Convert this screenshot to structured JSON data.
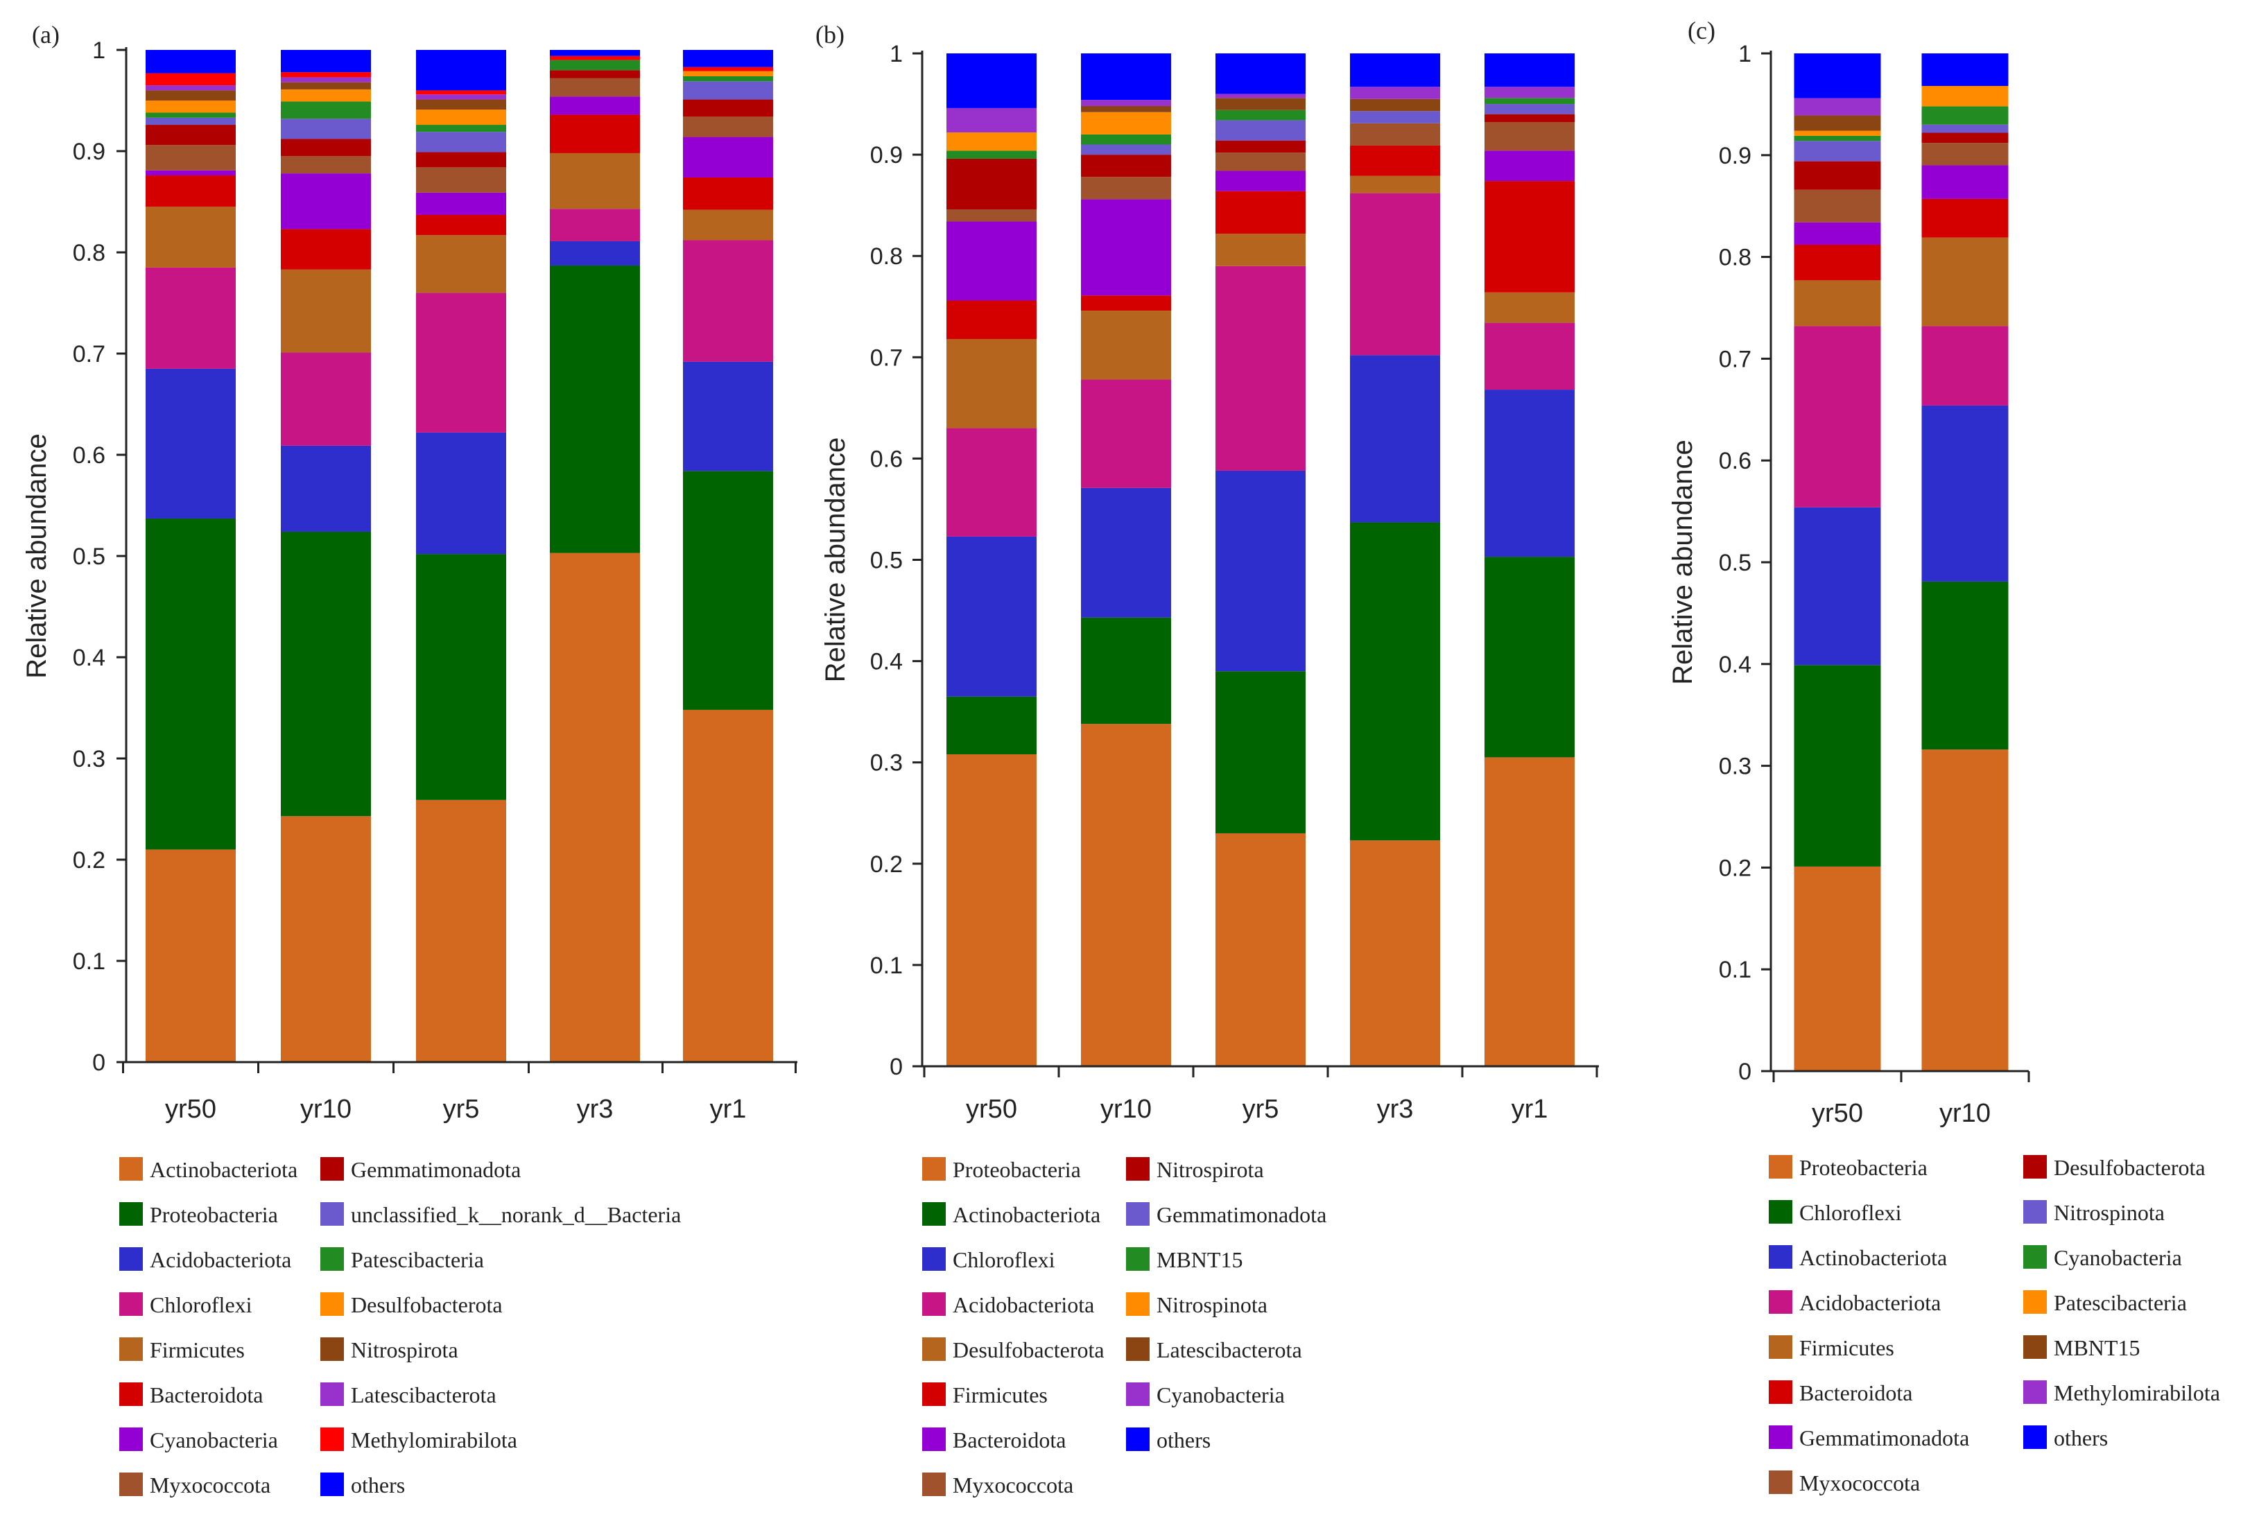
{
  "chart_data": [
    {
      "type": "bar",
      "panel_label": "(a)",
      "stacked": true,
      "ylabel": "Relative abundance",
      "xlabel": "",
      "ylim": [
        0,
        1
      ],
      "yticks": [
        "0",
        "0.1",
        "0.2",
        "0.3",
        "0.4",
        "0.5",
        "0.6",
        "0.7",
        "0.8",
        "0.9",
        "1"
      ],
      "categories": [
        "yr50",
        "yr10",
        "yr5",
        "yr3",
        "yr1"
      ],
      "legend_position": "bottom",
      "series": [
        {
          "name": "Actinobacteriota",
          "color": "#D2691E",
          "values": [
            0.21,
            0.243,
            0.259,
            0.503,
            0.348
          ]
        },
        {
          "name": "Proteobacteria",
          "color": "#006400",
          "values": [
            0.327,
            0.281,
            0.243,
            0.284,
            0.236
          ]
        },
        {
          "name": "Acidobacteriota",
          "color": "#2E2ECC",
          "values": [
            0.148,
            0.085,
            0.12,
            0.024,
            0.108
          ]
        },
        {
          "name": "Chloroflexi",
          "color": "#C71585",
          "values": [
            0.1,
            0.092,
            0.138,
            0.032,
            0.12
          ]
        },
        {
          "name": "Firmicutes",
          "color": "#B5651D",
          "values": [
            0.06,
            0.082,
            0.057,
            0.055,
            0.03
          ]
        },
        {
          "name": "Bacteroidota",
          "color": "#D40000",
          "values": [
            0.031,
            0.04,
            0.02,
            0.038,
            0.032
          ]
        },
        {
          "name": "Cyanobacteria",
          "color": "#9400D3",
          "values": [
            0.005,
            0.055,
            0.022,
            0.018,
            0.04
          ]
        },
        {
          "name": "Myxococcota",
          "color": "#A0522D",
          "values": [
            0.025,
            0.017,
            0.025,
            0.018,
            0.02
          ]
        },
        {
          "name": "Gemmatimonadota",
          "color": "#B00000",
          "values": [
            0.02,
            0.017,
            0.015,
            0.008,
            0.017
          ]
        },
        {
          "name": "unclassified_k__norank_d__Bacteria",
          "color": "#6A5ACD",
          "values": [
            0.007,
            0.02,
            0.02,
            0.0,
            0.018
          ]
        },
        {
          "name": "Patescibacteria",
          "color": "#228B22",
          "values": [
            0.005,
            0.017,
            0.007,
            0.01,
            0.005
          ]
        },
        {
          "name": "Desulfobacterota",
          "color": "#FF8C00",
          "values": [
            0.012,
            0.012,
            0.015,
            0.0,
            0.005
          ]
        },
        {
          "name": "Nitrospirota",
          "color": "#8B4513",
          "values": [
            0.01,
            0.007,
            0.01,
            0.0,
            0.0
          ]
        },
        {
          "name": "Latescibacterota",
          "color": "#9932CC",
          "values": [
            0.005,
            0.005,
            0.005,
            0.0,
            0.0
          ]
        },
        {
          "name": "Methylomirabilota",
          "color": "#FF0000",
          "values": [
            0.012,
            0.005,
            0.004,
            0.004,
            0.004
          ]
        },
        {
          "name": "others",
          "color": "#0000FF",
          "values": [
            0.023,
            0.022,
            0.04,
            0.006,
            0.017
          ]
        }
      ]
    },
    {
      "type": "bar",
      "panel_label": "(b)",
      "stacked": true,
      "ylabel": "Relative abundance",
      "xlabel": "",
      "ylim": [
        0,
        1
      ],
      "yticks": [
        "0",
        "0.1",
        "0.2",
        "0.3",
        "0.4",
        "0.5",
        "0.6",
        "0.7",
        "0.8",
        "0.9",
        "1"
      ],
      "categories": [
        "yr50",
        "yr10",
        "yr5",
        "yr3",
        "yr1"
      ],
      "legend_position": "bottom",
      "series": [
        {
          "name": "Proteobacteria",
          "color": "#D2691E",
          "values": [
            0.308,
            0.338,
            0.23,
            0.223,
            0.305
          ]
        },
        {
          "name": "Actinobacteriota",
          "color": "#006400",
          "values": [
            0.057,
            0.105,
            0.16,
            0.314,
            0.198
          ]
        },
        {
          "name": "Chloroflexi",
          "color": "#2E2ECC",
          "values": [
            0.158,
            0.128,
            0.198,
            0.165,
            0.165
          ]
        },
        {
          "name": "Acidobacteriota",
          "color": "#C71585",
          "values": [
            0.107,
            0.107,
            0.202,
            0.16,
            0.066
          ]
        },
        {
          "name": "Desulfobacterota",
          "color": "#B5651D",
          "values": [
            0.088,
            0.068,
            0.032,
            0.017,
            0.03
          ]
        },
        {
          "name": "Firmicutes",
          "color": "#D40000",
          "values": [
            0.038,
            0.015,
            0.042,
            0.03,
            0.11
          ]
        },
        {
          "name": "Bacteroidota",
          "color": "#9400D3",
          "values": [
            0.078,
            0.095,
            0.02,
            0.0,
            0.03
          ]
        },
        {
          "name": "Myxococcota",
          "color": "#A0522D",
          "values": [
            0.012,
            0.022,
            0.018,
            0.022,
            0.028
          ]
        },
        {
          "name": "Nitrospirota",
          "color": "#B00000",
          "values": [
            0.05,
            0.022,
            0.012,
            0.0,
            0.008
          ]
        },
        {
          "name": "Gemmatimonadota",
          "color": "#6A5ACD",
          "values": [
            0.0,
            0.01,
            0.02,
            0.012,
            0.01
          ]
        },
        {
          "name": "MBNT15",
          "color": "#228B22",
          "values": [
            0.008,
            0.01,
            0.01,
            0.0,
            0.006
          ]
        },
        {
          "name": "Nitrospinota",
          "color": "#FF8C00",
          "values": [
            0.018,
            0.022,
            0.0,
            0.0,
            0.0
          ]
        },
        {
          "name": "Latescibacterota",
          "color": "#8B4513",
          "values": [
            0.0,
            0.006,
            0.012,
            0.012,
            0.0
          ]
        },
        {
          "name": "Cyanobacteria",
          "color": "#9932CC",
          "values": [
            0.024,
            0.006,
            0.004,
            0.012,
            0.011
          ]
        },
        {
          "name": "others",
          "color": "#0000FF",
          "values": [
            0.054,
            0.046,
            0.04,
            0.033,
            0.033
          ]
        }
      ]
    },
    {
      "type": "bar",
      "panel_label": "(c)",
      "stacked": true,
      "ylabel": "Relative abundance",
      "xlabel": "",
      "ylim": [
        0,
        1
      ],
      "yticks": [
        "0",
        "0.1",
        "0.2",
        "0.3",
        "0.4",
        "0.5",
        "0.6",
        "0.7",
        "0.8",
        "0.9",
        "1"
      ],
      "categories": [
        "yr50",
        "yr10"
      ],
      "legend_position": "bottom",
      "series": [
        {
          "name": "Proteobacteria",
          "color": "#D2691E",
          "values": [
            0.201,
            0.316
          ]
        },
        {
          "name": "Chloroflexi",
          "color": "#006400",
          "values": [
            0.198,
            0.165
          ]
        },
        {
          "name": "Actinobacteriota",
          "color": "#2E2ECC",
          "values": [
            0.155,
            0.173
          ]
        },
        {
          "name": "Acidobacteriota",
          "color": "#C71585",
          "values": [
            0.178,
            0.078
          ]
        },
        {
          "name": "Firmicutes",
          "color": "#B5651D",
          "values": [
            0.045,
            0.087
          ]
        },
        {
          "name": "Bacteroidota",
          "color": "#D40000",
          "values": [
            0.035,
            0.038
          ]
        },
        {
          "name": "Gemmatimonadota",
          "color": "#9400D3",
          "values": [
            0.022,
            0.033
          ]
        },
        {
          "name": "Myxococcota",
          "color": "#A0522D",
          "values": [
            0.032,
            0.022
          ]
        },
        {
          "name": "Desulfobacterota",
          "color": "#B00000",
          "values": [
            0.028,
            0.01
          ]
        },
        {
          "name": "Nitrospinota",
          "color": "#6A5ACD",
          "values": [
            0.02,
            0.008
          ]
        },
        {
          "name": "Cyanobacteria",
          "color": "#228B22",
          "values": [
            0.005,
            0.018
          ]
        },
        {
          "name": "Patescibacteria",
          "color": "#FF8C00",
          "values": [
            0.005,
            0.02
          ]
        },
        {
          "name": "MBNT15",
          "color": "#8B4513",
          "values": [
            0.015,
            0.0
          ]
        },
        {
          "name": "Methylomirabilota",
          "color": "#9932CC",
          "values": [
            0.017,
            0.0
          ]
        },
        {
          "name": "others",
          "color": "#0000FF",
          "values": [
            0.044,
            0.032
          ]
        }
      ]
    }
  ]
}
